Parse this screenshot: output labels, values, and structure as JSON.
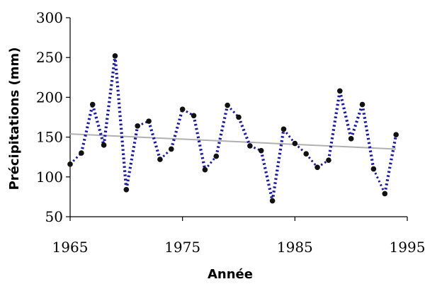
{
  "chart_data": {
    "type": "line",
    "title": "",
    "xlabel": "Année",
    "ylabel": "Précipitations (mm)",
    "xlim": [
      1965,
      1995
    ],
    "ylim": [
      50,
      300
    ],
    "x_ticks": [
      "1965",
      "1975",
      "1985",
      "1995"
    ],
    "y_ticks": [
      "300",
      "250",
      "200",
      "150",
      "100",
      "50"
    ],
    "grid": false,
    "legend": "none",
    "series": [
      {
        "style": "dotted",
        "color": "#1a1aa0",
        "x": [
          1965,
          1966,
          1967,
          1968,
          1969,
          1970,
          1971,
          1972,
          1973,
          1974,
          1975,
          1976,
          1977,
          1978,
          1979,
          1980,
          1981,
          1982,
          1983,
          1984,
          1985,
          1986,
          1987,
          1988,
          1989,
          1990,
          1991,
          1992,
          1993,
          1994
        ],
        "values": [
          116,
          130,
          191,
          140,
          252,
          84,
          164,
          170,
          122,
          135,
          185,
          177,
          109,
          126,
          190,
          175,
          139,
          133,
          70,
          160,
          142,
          129,
          112,
          121,
          208,
          148,
          191,
          110,
          79,
          153
        ]
      },
      {
        "style": "trendline",
        "color": "#b0b0b0",
        "x": [
          1965,
          1994
        ],
        "values": [
          154,
          135
        ]
      }
    ]
  }
}
